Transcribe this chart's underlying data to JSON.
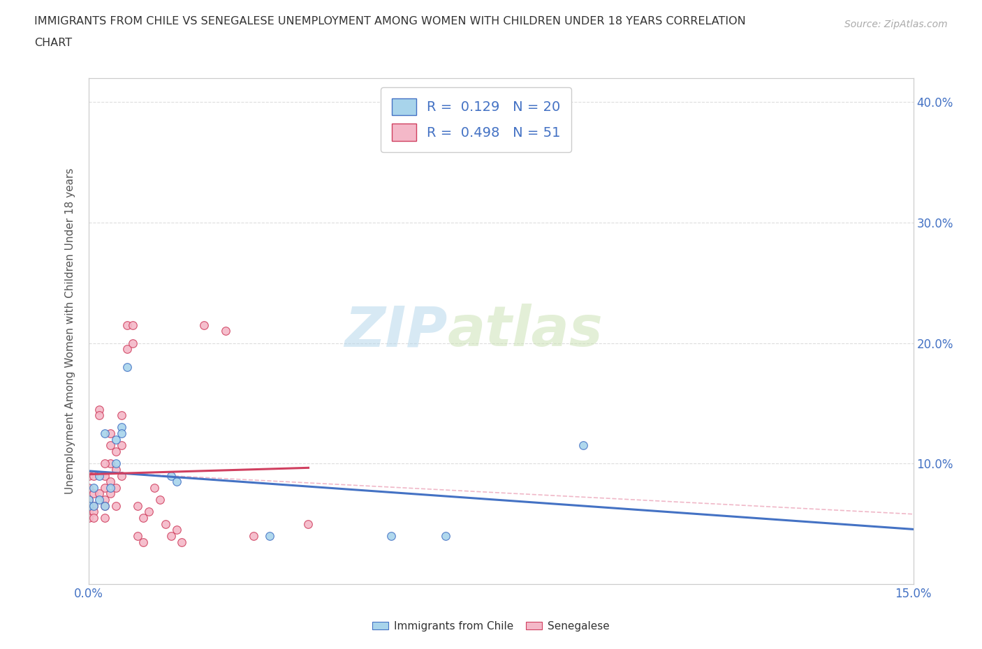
{
  "title_line1": "IMMIGRANTS FROM CHILE VS SENEGALESE UNEMPLOYMENT AMONG WOMEN WITH CHILDREN UNDER 18 YEARS CORRELATION",
  "title_line2": "CHART",
  "source": "Source: ZipAtlas.com",
  "ylabel": "Unemployment Among Women with Children Under 18 years",
  "xlim": [
    0.0,
    0.15
  ],
  "ylim": [
    0.0,
    0.42
  ],
  "xticks": [
    0.0,
    0.025,
    0.05,
    0.075,
    0.1,
    0.125,
    0.15
  ],
  "xtick_labels": [
    "0.0%",
    "",
    "",
    "",
    "",
    "",
    "15.0%"
  ],
  "yticks": [
    0.0,
    0.1,
    0.2,
    0.3,
    0.4
  ],
  "ytick_right_labels": [
    "",
    "10.0%",
    "20.0%",
    "30.0%",
    "40.0%"
  ],
  "chile_fill_color": "#a8d4eb",
  "chile_edge_color": "#4472c4",
  "senegal_fill_color": "#f4b8c8",
  "senegal_edge_color": "#d04060",
  "chile_trend_color": "#4472c4",
  "senegal_trend_color": "#d04060",
  "overall_trend_color": "#f0b8c8",
  "watermark": "ZIPatlas",
  "legend_R_chile": "0.129",
  "legend_N_chile": "20",
  "legend_R_senegal": "0.498",
  "legend_N_senegal": "51",
  "chile_points": [
    [
      0.0,
      0.07
    ],
    [
      0.0,
      0.065
    ],
    [
      0.001,
      0.08
    ],
    [
      0.001,
      0.065
    ],
    [
      0.002,
      0.09
    ],
    [
      0.002,
      0.07
    ],
    [
      0.003,
      0.125
    ],
    [
      0.003,
      0.065
    ],
    [
      0.004,
      0.08
    ],
    [
      0.005,
      0.12
    ],
    [
      0.005,
      0.1
    ],
    [
      0.006,
      0.13
    ],
    [
      0.006,
      0.125
    ],
    [
      0.007,
      0.18
    ],
    [
      0.015,
      0.09
    ],
    [
      0.016,
      0.085
    ],
    [
      0.033,
      0.04
    ],
    [
      0.055,
      0.04
    ],
    [
      0.065,
      0.04
    ],
    [
      0.09,
      0.115
    ]
  ],
  "senegal_points": [
    [
      0.0,
      0.08
    ],
    [
      0.0,
      0.07
    ],
    [
      0.0,
      0.065
    ],
    [
      0.0,
      0.06
    ],
    [
      0.0,
      0.055
    ],
    [
      0.001,
      0.075
    ],
    [
      0.001,
      0.065
    ],
    [
      0.001,
      0.06
    ],
    [
      0.001,
      0.055
    ],
    [
      0.002,
      0.145
    ],
    [
      0.002,
      0.14
    ],
    [
      0.003,
      0.09
    ],
    [
      0.003,
      0.08
    ],
    [
      0.003,
      0.07
    ],
    [
      0.003,
      0.065
    ],
    [
      0.003,
      0.055
    ],
    [
      0.004,
      0.125
    ],
    [
      0.004,
      0.115
    ],
    [
      0.004,
      0.1
    ],
    [
      0.004,
      0.085
    ],
    [
      0.005,
      0.11
    ],
    [
      0.005,
      0.095
    ],
    [
      0.005,
      0.08
    ],
    [
      0.005,
      0.065
    ],
    [
      0.006,
      0.14
    ],
    [
      0.006,
      0.115
    ],
    [
      0.006,
      0.09
    ],
    [
      0.007,
      0.215
    ],
    [
      0.007,
      0.195
    ],
    [
      0.008,
      0.215
    ],
    [
      0.008,
      0.2
    ],
    [
      0.009,
      0.065
    ],
    [
      0.009,
      0.04
    ],
    [
      0.01,
      0.055
    ],
    [
      0.01,
      0.035
    ],
    [
      0.011,
      0.06
    ],
    [
      0.012,
      0.08
    ],
    [
      0.013,
      0.07
    ],
    [
      0.014,
      0.05
    ],
    [
      0.015,
      0.04
    ],
    [
      0.016,
      0.045
    ],
    [
      0.017,
      0.035
    ],
    [
      0.021,
      0.215
    ],
    [
      0.025,
      0.21
    ],
    [
      0.03,
      0.04
    ],
    [
      0.04,
      0.05
    ],
    [
      0.0,
      0.09
    ],
    [
      0.001,
      0.09
    ],
    [
      0.002,
      0.075
    ],
    [
      0.003,
      0.1
    ],
    [
      0.004,
      0.075
    ]
  ],
  "background_color": "#ffffff"
}
